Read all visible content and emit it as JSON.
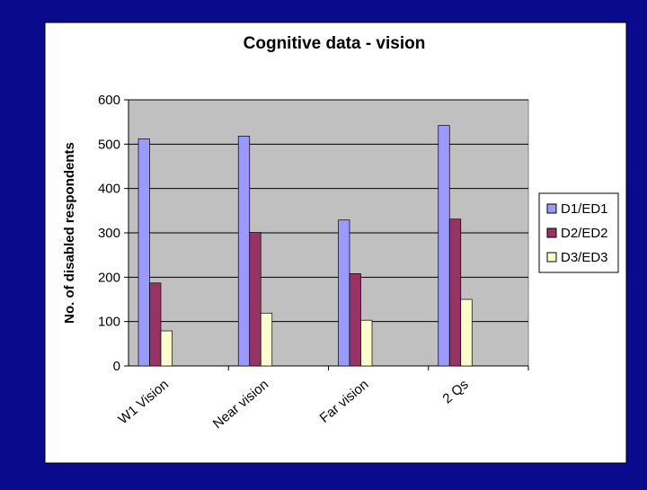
{
  "chart_data": {
    "type": "bar",
    "title": "Cognitive data - vision",
    "y_label": "No. of disabled respondents",
    "categories": [
      "W1 Vision",
      "Near vision",
      "Far vision",
      "2 Qs"
    ],
    "series": [
      {
        "name": "D1/ED1",
        "color": "#9999ff",
        "values": [
          512,
          518,
          329,
          542
        ]
      },
      {
        "name": "D2/ED2",
        "color": "#993366",
        "values": [
          187,
          301,
          208,
          331
        ]
      },
      {
        "name": "D3/ED3",
        "color": "#ffffcc",
        "values": [
          79,
          119,
          103,
          150
        ]
      }
    ],
    "ylim": [
      0,
      600
    ],
    "yticks": [
      0,
      100,
      200,
      300,
      400,
      500,
      600
    ],
    "grid": true,
    "legend": "right"
  }
}
